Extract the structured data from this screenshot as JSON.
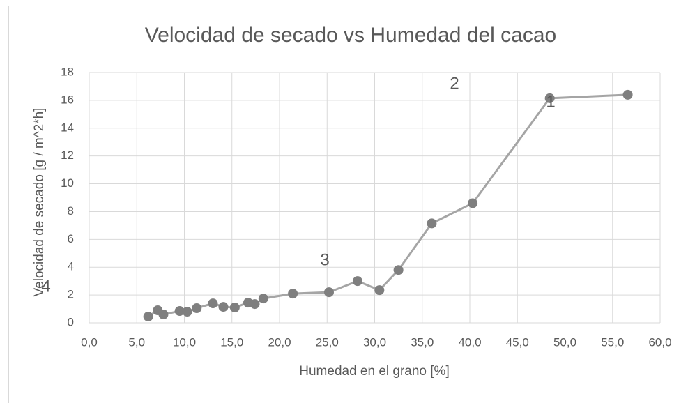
{
  "chart_data": {
    "type": "line",
    "title": "Velocidad de secado vs Humedad del cacao",
    "xlabel": "Humedad en el grano [%]",
    "ylabel": "Velocidad de secado [g / m^2*h]",
    "x": [
      6.2,
      7.2,
      7.8,
      9.5,
      10.3,
      11.3,
      13.0,
      14.1,
      15.3,
      16.7,
      17.4,
      18.3,
      21.4,
      25.2,
      28.2,
      30.5,
      32.5,
      36.0,
      40.3,
      48.4,
      56.6
    ],
    "values": [
      0.45,
      0.9,
      0.6,
      0.85,
      0.8,
      1.05,
      1.4,
      1.15,
      1.1,
      1.45,
      1.35,
      1.75,
      2.1,
      2.2,
      3.0,
      2.35,
      3.8,
      7.15,
      8.6,
      16.15,
      16.4
    ],
    "line_color": "#a5a5a5",
    "marker_color": "#7f7f7f",
    "xlim": [
      0,
      60
    ],
    "xticks": [
      {
        "value": 0,
        "label": "0,0"
      },
      {
        "value": 5,
        "label": "5,0"
      },
      {
        "value": 10,
        "label": "10,0"
      },
      {
        "value": 15,
        "label": "15,0"
      },
      {
        "value": 20,
        "label": "20,0"
      },
      {
        "value": 25,
        "label": "25,0"
      },
      {
        "value": 30,
        "label": "30,0"
      },
      {
        "value": 35,
        "label": "35,0"
      },
      {
        "value": 40,
        "label": "40,0"
      },
      {
        "value": 45,
        "label": "45,0"
      },
      {
        "value": 50,
        "label": "50,0"
      },
      {
        "value": 55,
        "label": "55,0"
      },
      {
        "value": 60,
        "label": "60,0"
      }
    ],
    "ylim": [
      0,
      18
    ],
    "yticks": [
      0,
      2,
      4,
      6,
      8,
      10,
      12,
      14,
      16,
      18
    ],
    "grid": true,
    "annotations": [
      "1",
      "2",
      "3",
      "4"
    ]
  }
}
